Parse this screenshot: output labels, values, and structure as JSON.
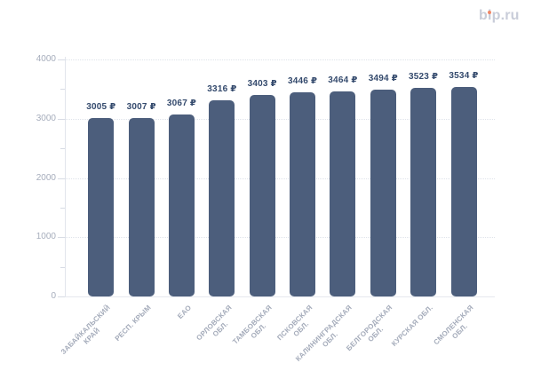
{
  "logo": {
    "text": "bip.ru"
  },
  "colors": {
    "background": "#ffffff",
    "bar": "#4c5e7c",
    "value_label": "#344a6d",
    "axis_label": "#a6adbc",
    "category_label": "#a4abba",
    "gridline": "#dfe3ea",
    "axis_line": "#e2e5ec",
    "logo_text": "#c9cdd9",
    "logo_dot": "#f08767"
  },
  "chart_data": {
    "type": "bar",
    "title": "",
    "categories": [
      "ЗАБАЙКАЛЬСКИЙ\nКРАЙ",
      "РЕСП. КРЫМ",
      "ЕАО",
      "ОРЛОВСКАЯ\nОБЛ.",
      "ТАМБОВСКАЯ\nОБЛ.",
      "ПСКОВСКАЯ\nОБЛ.",
      "КАЛИНИНГРАДСКАЯ\nОБЛ.",
      "БЕЛГОРОДСКАЯ\nОБЛ.",
      "КУРСКАЯ ОБЛ.",
      "СМОЛЕНСКАЯ\nОБЛ."
    ],
    "values": [
      3005,
      3007,
      3067,
      3316,
      3403,
      3446,
      3464,
      3494,
      3523,
      3534
    ],
    "value_labels": [
      "3005 ₽",
      "3007 ₽",
      "3067 ₽",
      "3316 ₽",
      "3403 ₽",
      "3446 ₽",
      "3464 ₽",
      "3494 ₽",
      "3523 ₽",
      "3534 ₽"
    ],
    "currency_symbol": "₽",
    "xlabel": "",
    "ylabel": "",
    "ylim": [
      0,
      4000
    ],
    "yticks": [
      0,
      1000,
      2000,
      3000,
      4000
    ],
    "minor_tick_step": 500,
    "grid": "horizontal-dotted",
    "legend": "none"
  }
}
